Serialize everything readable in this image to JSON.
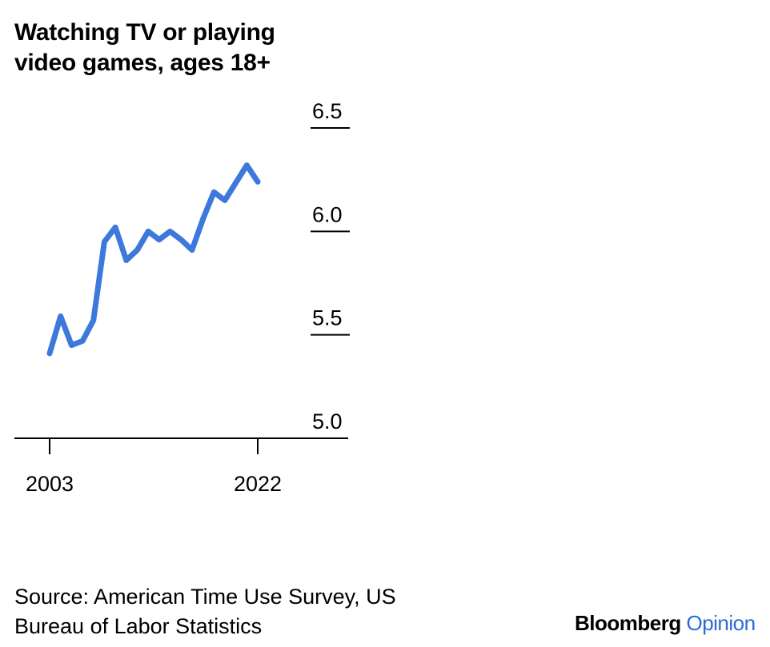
{
  "title": {
    "line1": "Watching TV or playing",
    "line2": "video games, ages 18+"
  },
  "source": {
    "line1": "Source: American Time Use Survey, US",
    "line2": "Bureau of Labor Statistics"
  },
  "logo": {
    "brand": "Bloomberg",
    "accent": "Opinion"
  },
  "colors": {
    "line": "#3d79dc",
    "axis": "#000000",
    "logo_accent": "#2a6bd6"
  },
  "chart_data": {
    "type": "line",
    "title": "Watching TV or playing video games, ages 18+",
    "xlabel": "",
    "ylabel": "",
    "x": [
      2003,
      2004,
      2005,
      2006,
      2007,
      2008,
      2009,
      2010,
      2011,
      2012,
      2013,
      2014,
      2015,
      2016,
      2017,
      2018,
      2019,
      2021,
      2022
    ],
    "series": [
      {
        "values": [
          5.41,
          5.59,
          5.45,
          5.47,
          5.57,
          5.95,
          6.02,
          5.86,
          5.91,
          6.0,
          5.96,
          6.0,
          5.96,
          5.91,
          6.06,
          6.19,
          6.15,
          6.32,
          6.24
        ]
      }
    ],
    "x_ticks": [
      "2003",
      "2022"
    ],
    "y_ticks": [
      "6.5",
      "6.0",
      "5.5",
      "5.0"
    ],
    "y_tick_values": [
      6.5,
      6.0,
      5.5,
      5.0
    ],
    "ylim": [
      5.0,
      6.5
    ],
    "xlim": [
      2003,
      2022
    ],
    "grid": false,
    "legend": "none"
  }
}
